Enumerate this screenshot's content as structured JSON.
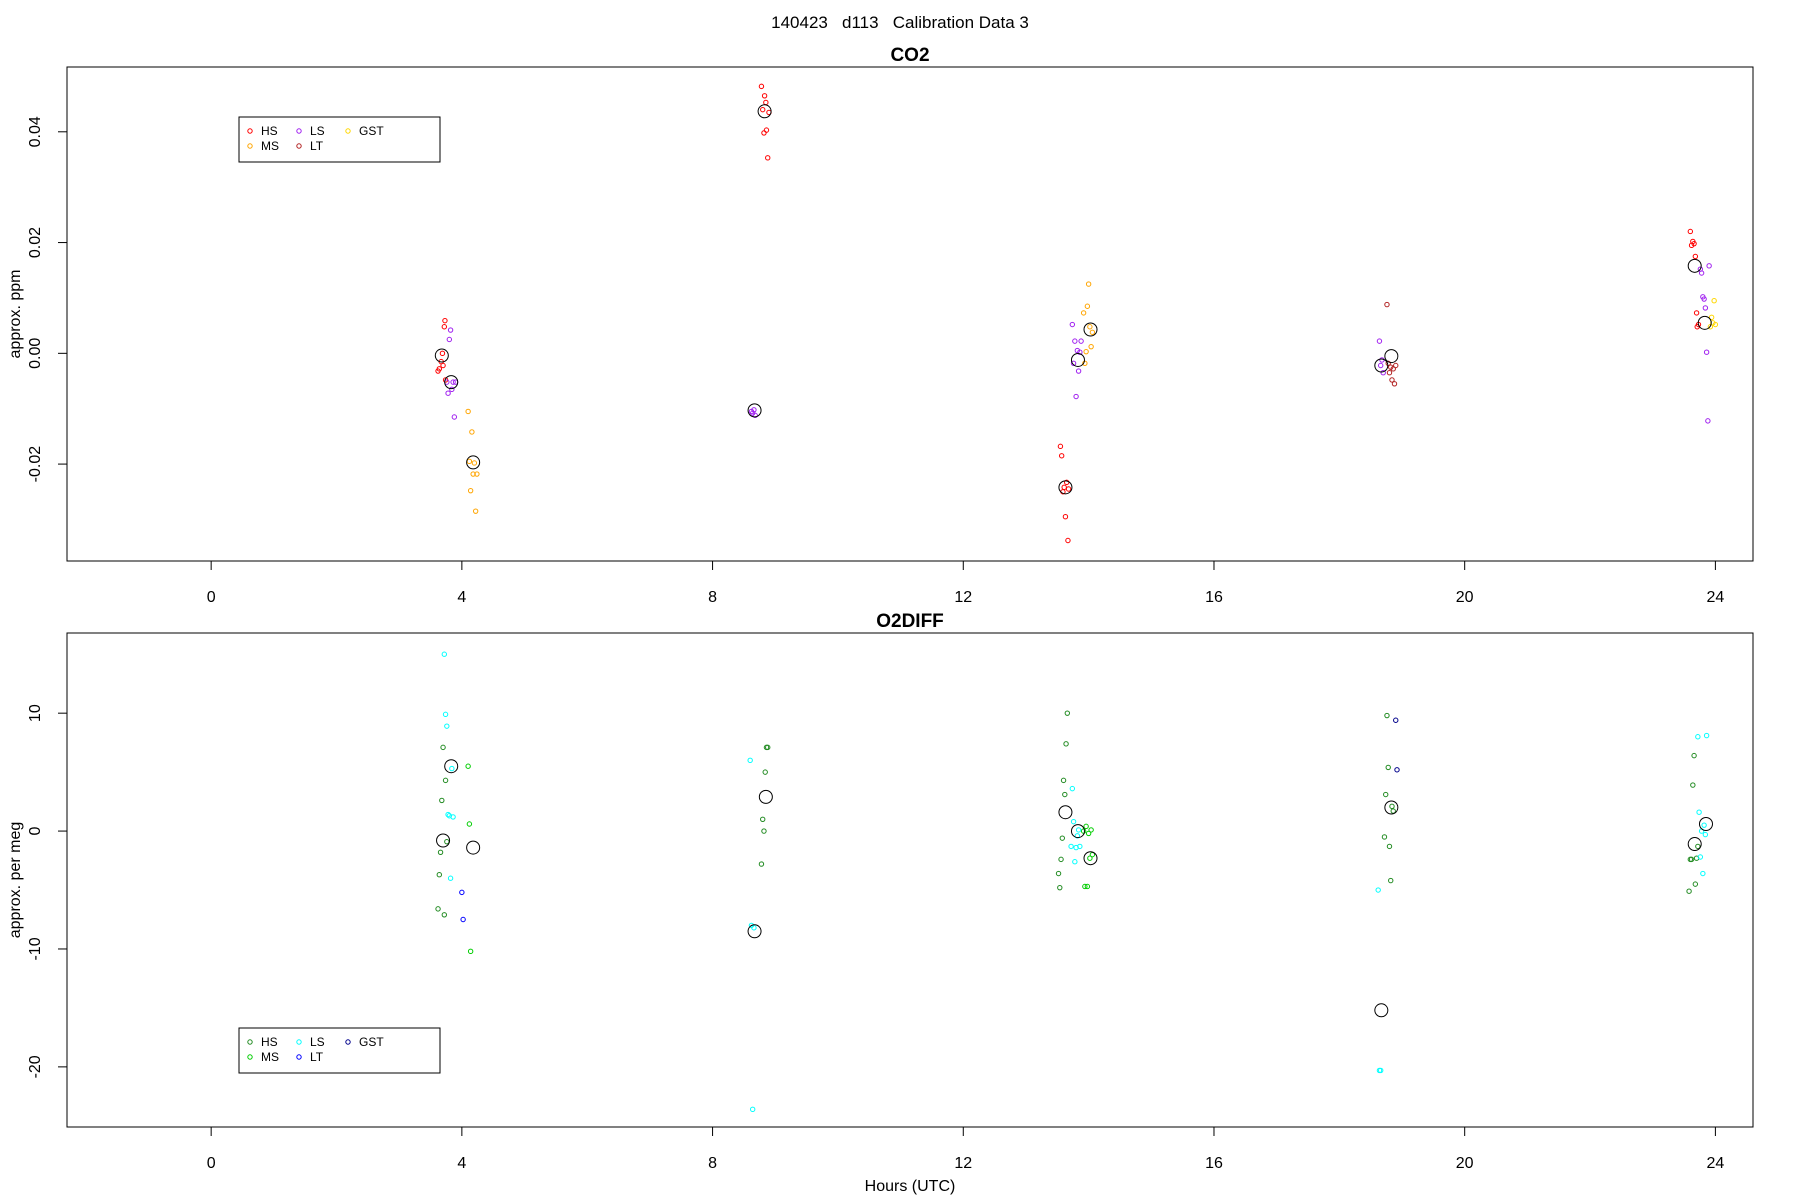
{
  "figure_title": "140423   d113   Calibration Data 3",
  "chart_data": [
    {
      "type": "scatter",
      "title": "CO2",
      "xlabel": "",
      "ylabel": "approx. ppm",
      "xlim": [
        -2.3,
        24.6
      ],
      "ylim": [
        -0.0375,
        0.0517
      ],
      "x_ticks": [
        0,
        4,
        8,
        12,
        16,
        20,
        24
      ],
      "x_tick_labels": [
        "0",
        "4",
        "8",
        "12",
        "16",
        "20",
        "24"
      ],
      "y_ticks": [
        -0.02,
        0.0,
        0.02,
        0.04
      ],
      "y_tick_labels": [
        "-0.02",
        "0.00",
        "0.02",
        "0.04"
      ],
      "grid": false,
      "legend_position": "top-left",
      "series": [
        {
          "name": "HS",
          "color": "#ff0000",
          "points": [
            [
              3.62,
              -0.0032
            ],
            [
              3.64,
              -0.0028
            ],
            [
              3.67,
              -0.0015
            ],
            [
              3.69,
              0.0
            ],
            [
              3.7,
              -0.0022
            ],
            [
              3.72,
              0.0048
            ],
            [
              3.73,
              0.0059
            ],
            [
              3.74,
              -0.0048
            ],
            [
              8.78,
              0.0482
            ],
            [
              8.8,
              0.044
            ],
            [
              8.82,
              0.0398
            ],
            [
              8.83,
              0.0465
            ],
            [
              8.85,
              0.0453
            ],
            [
              8.86,
              0.0403
            ],
            [
              8.88,
              0.0353
            ],
            [
              8.9,
              0.0435
            ],
            [
              13.55,
              -0.0168
            ],
            [
              13.57,
              -0.0185
            ],
            [
              13.59,
              -0.025
            ],
            [
              13.61,
              -0.0242
            ],
            [
              13.63,
              -0.0295
            ],
            [
              13.65,
              -0.0233
            ],
            [
              13.67,
              -0.0338
            ],
            [
              13.68,
              -0.0245
            ],
            [
              23.6,
              0.022
            ],
            [
              23.62,
              0.0195
            ],
            [
              23.64,
              0.0202
            ],
            [
              23.66,
              0.0198
            ],
            [
              23.68,
              0.0175
            ],
            [
              23.7,
              0.0073
            ],
            [
              23.71,
              0.0048
            ],
            [
              23.73,
              0.0052
            ]
          ]
        },
        {
          "name": "MS",
          "color": "#ffa500",
          "points": [
            [
              4.1,
              -0.0105
            ],
            [
              4.12,
              -0.0195
            ],
            [
              4.14,
              -0.0248
            ],
            [
              4.16,
              -0.0142
            ],
            [
              4.18,
              -0.0218
            ],
            [
              4.2,
              -0.0198
            ],
            [
              4.22,
              -0.0285
            ],
            [
              4.24,
              -0.0218
            ],
            [
              13.92,
              0.0073
            ],
            [
              13.94,
              -0.0018
            ],
            [
              13.96,
              0.0003
            ],
            [
              13.98,
              0.0085
            ],
            [
              14.0,
              0.0125
            ],
            [
              14.02,
              0.0048
            ],
            [
              14.04,
              0.0012
            ],
            [
              14.06,
              0.0038
            ]
          ]
        },
        {
          "name": "LS",
          "color": "#a020f0",
          "points": [
            [
              3.76,
              -0.0052
            ],
            [
              3.78,
              -0.0072
            ],
            [
              3.8,
              0.0025
            ],
            [
              3.82,
              0.0042
            ],
            [
              3.84,
              -0.0065
            ],
            [
              3.86,
              -0.0052
            ],
            [
              3.88,
              -0.0115
            ],
            [
              3.9,
              -0.0052
            ],
            [
              8.62,
              -0.0105
            ],
            [
              8.64,
              -0.0108
            ],
            [
              8.66,
              -0.0102
            ],
            [
              8.68,
              -0.0112
            ],
            [
              13.74,
              0.0052
            ],
            [
              13.76,
              -0.0018
            ],
            [
              13.78,
              0.0022
            ],
            [
              13.8,
              -0.0078
            ],
            [
              13.82,
              0.0005
            ],
            [
              13.84,
              -0.0032
            ],
            [
              13.86,
              0.0002
            ],
            [
              13.88,
              0.0022
            ],
            [
              18.64,
              0.0022
            ],
            [
              18.66,
              -0.0022
            ],
            [
              18.68,
              -0.0012
            ],
            [
              18.7,
              -0.0035
            ],
            [
              23.76,
              0.0152
            ],
            [
              23.78,
              0.0145
            ],
            [
              23.8,
              0.0102
            ],
            [
              23.82,
              0.0098
            ],
            [
              23.84,
              0.0082
            ],
            [
              23.86,
              0.0002
            ],
            [
              23.88,
              -0.0122
            ],
            [
              23.9,
              0.0158
            ]
          ]
        },
        {
          "name": "LT",
          "color": "#b22222",
          "points": [
            [
              18.76,
              0.0088
            ],
            [
              18.78,
              -0.0018
            ],
            [
              18.8,
              -0.0035
            ],
            [
              18.82,
              -0.0025
            ],
            [
              18.84,
              -0.0048
            ],
            [
              18.86,
              -0.0028
            ],
            [
              18.88,
              -0.0055
            ],
            [
              18.9,
              -0.0022
            ]
          ]
        },
        {
          "name": "GST",
          "color": "#ffd700",
          "points": [
            [
              23.92,
              0.0048
            ],
            [
              23.94,
              0.0065
            ],
            [
              23.96,
              0.0055
            ],
            [
              23.98,
              0.0095
            ],
            [
              24.0,
              0.0052
            ]
          ]
        }
      ],
      "means": [
        [
          3.68,
          -0.0004
        ],
        [
          3.83,
          -0.0052
        ],
        [
          4.18,
          -0.0197
        ],
        [
          8.83,
          0.0437
        ],
        [
          8.67,
          -0.0103
        ],
        [
          13.63,
          -0.0242
        ],
        [
          13.83,
          -0.0012
        ],
        [
          14.03,
          0.0043
        ],
        [
          18.67,
          -0.0022
        ],
        [
          18.83,
          -0.0005
        ],
        [
          23.67,
          0.0158
        ],
        [
          23.83,
          0.0055
        ]
      ]
    },
    {
      "type": "scatter",
      "title": "O2DIFF",
      "xlabel": "Hours (UTC)",
      "ylabel": "approx. per meg",
      "xlim": [
        -2.3,
        24.6
      ],
      "ylim": [
        -25.1,
        16.8
      ],
      "x_ticks": [
        0,
        4,
        8,
        12,
        16,
        20,
        24
      ],
      "x_tick_labels": [
        "0",
        "4",
        "8",
        "12",
        "16",
        "20",
        "24"
      ],
      "y_ticks": [
        -20,
        -10,
        0,
        10
      ],
      "y_tick_labels": [
        "-20",
        "-10",
        "0",
        "10"
      ],
      "grid": false,
      "legend_position": "bottom-left",
      "series": [
        {
          "name": "HS",
          "color": "#228b22",
          "points": [
            [
              3.62,
              -6.6
            ],
            [
              3.64,
              -3.7
            ],
            [
              3.66,
              -1.8
            ],
            [
              3.68,
              2.6
            ],
            [
              3.7,
              7.1
            ],
            [
              3.72,
              -7.1
            ],
            [
              3.74,
              4.3
            ],
            [
              3.76,
              -0.9
            ],
            [
              8.78,
              -2.8
            ],
            [
              8.8,
              1.0
            ],
            [
              8.82,
              0.0
            ],
            [
              8.84,
              5.0
            ],
            [
              8.86,
              7.1
            ],
            [
              8.88,
              7.1
            ],
            [
              13.52,
              -3.6
            ],
            [
              13.54,
              -4.8
            ],
            [
              13.56,
              -2.4
            ],
            [
              13.58,
              -0.6
            ],
            [
              13.6,
              4.3
            ],
            [
              13.62,
              3.1
            ],
            [
              13.64,
              7.4
            ],
            [
              13.66,
              10.0
            ],
            [
              18.72,
              -0.5
            ],
            [
              18.74,
              3.1
            ],
            [
              18.76,
              9.8
            ],
            [
              18.78,
              5.4
            ],
            [
              18.8,
              -1.3
            ],
            [
              18.82,
              -4.2
            ],
            [
              18.84,
              2.1
            ],
            [
              18.86,
              1.7
            ],
            [
              23.58,
              -5.1
            ],
            [
              23.6,
              -2.4
            ],
            [
              23.62,
              -2.4
            ],
            [
              23.64,
              3.9
            ],
            [
              23.66,
              6.4
            ],
            [
              23.68,
              -4.5
            ],
            [
              23.7,
              -2.3
            ],
            [
              23.72,
              -1.3
            ]
          ]
        },
        {
          "name": "MS",
          "color": "#00cd00",
          "points": [
            [
              4.1,
              5.5
            ],
            [
              4.12,
              0.6
            ],
            [
              4.14,
              -10.2
            ],
            [
              13.92,
              0.0
            ],
            [
              13.94,
              -4.7
            ],
            [
              13.96,
              0.4
            ],
            [
              13.98,
              -4.7
            ],
            [
              14.0,
              -0.2
            ],
            [
              14.02,
              -2.3
            ],
            [
              14.04,
              0.1
            ],
            [
              14.06,
              -2.0
            ]
          ]
        },
        {
          "name": "LS",
          "color": "#00ffff",
          "points": [
            [
              3.72,
              15.0
            ],
            [
              3.74,
              9.9
            ],
            [
              3.76,
              8.9
            ],
            [
              3.78,
              1.4
            ],
            [
              3.8,
              1.3
            ],
            [
              3.82,
              -4.0
            ],
            [
              3.84,
              5.3
            ],
            [
              3.86,
              1.2
            ],
            [
              8.6,
              6.0
            ],
            [
              8.62,
              -8.0
            ],
            [
              8.64,
              -23.6
            ],
            [
              8.66,
              -8.2
            ],
            [
              13.72,
              -1.3
            ],
            [
              13.74,
              3.6
            ],
            [
              13.76,
              0.8
            ],
            [
              13.78,
              -2.6
            ],
            [
              13.8,
              -1.4
            ],
            [
              13.82,
              -0.4
            ],
            [
              13.84,
              0.1
            ],
            [
              13.86,
              -1.3
            ],
            [
              18.62,
              -5.0
            ],
            [
              18.64,
              -20.3
            ],
            [
              18.66,
              -20.3
            ],
            [
              23.72,
              8.0
            ],
            [
              23.74,
              1.6
            ],
            [
              23.76,
              -2.2
            ],
            [
              23.78,
              0.0
            ],
            [
              23.8,
              -3.6
            ],
            [
              23.82,
              0.5
            ],
            [
              23.84,
              -0.3
            ],
            [
              23.86,
              8.1
            ]
          ]
        },
        {
          "name": "LT",
          "color": "#0000ff",
          "points": [
            [
              4.0,
              -5.2
            ],
            [
              4.02,
              -7.5
            ]
          ]
        },
        {
          "name": "GST",
          "color": "#00008b",
          "points": [
            [
              18.9,
              9.4
            ],
            [
              18.92,
              5.2
            ]
          ]
        }
      ],
      "means": [
        [
          3.7,
          -0.8
        ],
        [
          3.83,
          5.5
        ],
        [
          4.18,
          -1.4
        ],
        [
          8.85,
          2.9
        ],
        [
          8.67,
          -8.5
        ],
        [
          13.63,
          1.6
        ],
        [
          13.83,
          0.0
        ],
        [
          14.03,
          -2.3
        ],
        [
          18.67,
          -15.2
        ],
        [
          18.83,
          2.0
        ],
        [
          23.67,
          -1.1
        ],
        [
          23.85,
          0.6
        ]
      ]
    }
  ]
}
